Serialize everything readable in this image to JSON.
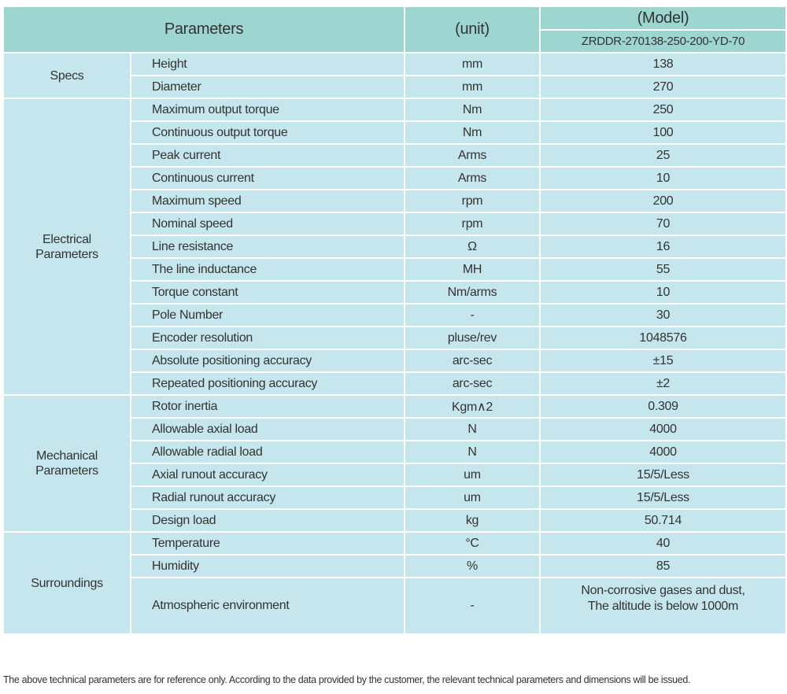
{
  "header": {
    "parameters": "Parameters",
    "unit": "(unit)",
    "model_title": "(Model)",
    "model_name": "ZRDDR-270138-250-200-YD-70"
  },
  "groups": [
    {
      "name": "Specs",
      "rows": [
        {
          "param": "Height",
          "unit": "mm",
          "value": "138"
        },
        {
          "param": "Diameter",
          "unit": "mm",
          "value": "270"
        }
      ]
    },
    {
      "name": "Electrical Parameters",
      "rows": [
        {
          "param": "Maximum output torque",
          "unit": "Nm",
          "value": "250"
        },
        {
          "param": "Continuous output torque",
          "unit": "Nm",
          "value": "100"
        },
        {
          "param": "Peak current",
          "unit": "Arms",
          "value": "25"
        },
        {
          "param": "Continuous current",
          "unit": "Arms",
          "value": "10"
        },
        {
          "param": "Maximum speed",
          "unit": "rpm",
          "value": "200"
        },
        {
          "param": "Nominal speed",
          "unit": "rpm",
          "value": "70"
        },
        {
          "param": "Line resistance",
          "unit": "Ω",
          "value": "16"
        },
        {
          "param": "The line inductance",
          "unit": "MH",
          "value": "55"
        },
        {
          "param": "Torque constant",
          "unit": "Nm/arms",
          "value": "10"
        },
        {
          "param": "Pole Number",
          "unit": "-",
          "value": "30"
        },
        {
          "param": "Encoder resolution",
          "unit": "pluse/rev",
          "value": "1048576"
        },
        {
          "param": "Absolute positioning accuracy",
          "unit": "arc-sec",
          "value": "±15"
        },
        {
          "param": "Repeated positioning accuracy",
          "unit": "arc-sec",
          "value": "±2"
        }
      ]
    },
    {
      "name": "Mechanical Parameters",
      "rows": [
        {
          "param": "Rotor inertia",
          "unit": "Kgm∧2",
          "value": "0.309"
        },
        {
          "param": "Allowable axial load",
          "unit": "N",
          "value": "4000"
        },
        {
          "param": "Allowable radial load",
          "unit": "N",
          "value": "4000"
        },
        {
          "param": "Axial runout accuracy",
          "unit": "um",
          "value": "15/5/Less"
        },
        {
          "param": "Radial runout accuracy",
          "unit": "um",
          "value": "15/5/Less"
        },
        {
          "param": "Design load",
          "unit": "kg",
          "value": "50.714"
        }
      ]
    },
    {
      "name": "Surroundings",
      "rows": [
        {
          "param": "Temperature",
          "unit": "°C",
          "value": "40"
        },
        {
          "param": "Humidity",
          "unit": "%",
          "value": "85"
        },
        {
          "param": "Atmospheric environment",
          "unit": "-",
          "value": "Non-corrosive gases and dust,",
          "value2": "The altitude is below 1000m"
        }
      ]
    }
  ],
  "footnote": "The above technical parameters are for reference only. According to the data provided by the customer, the relevant technical parameters and dimensions will be issued."
}
